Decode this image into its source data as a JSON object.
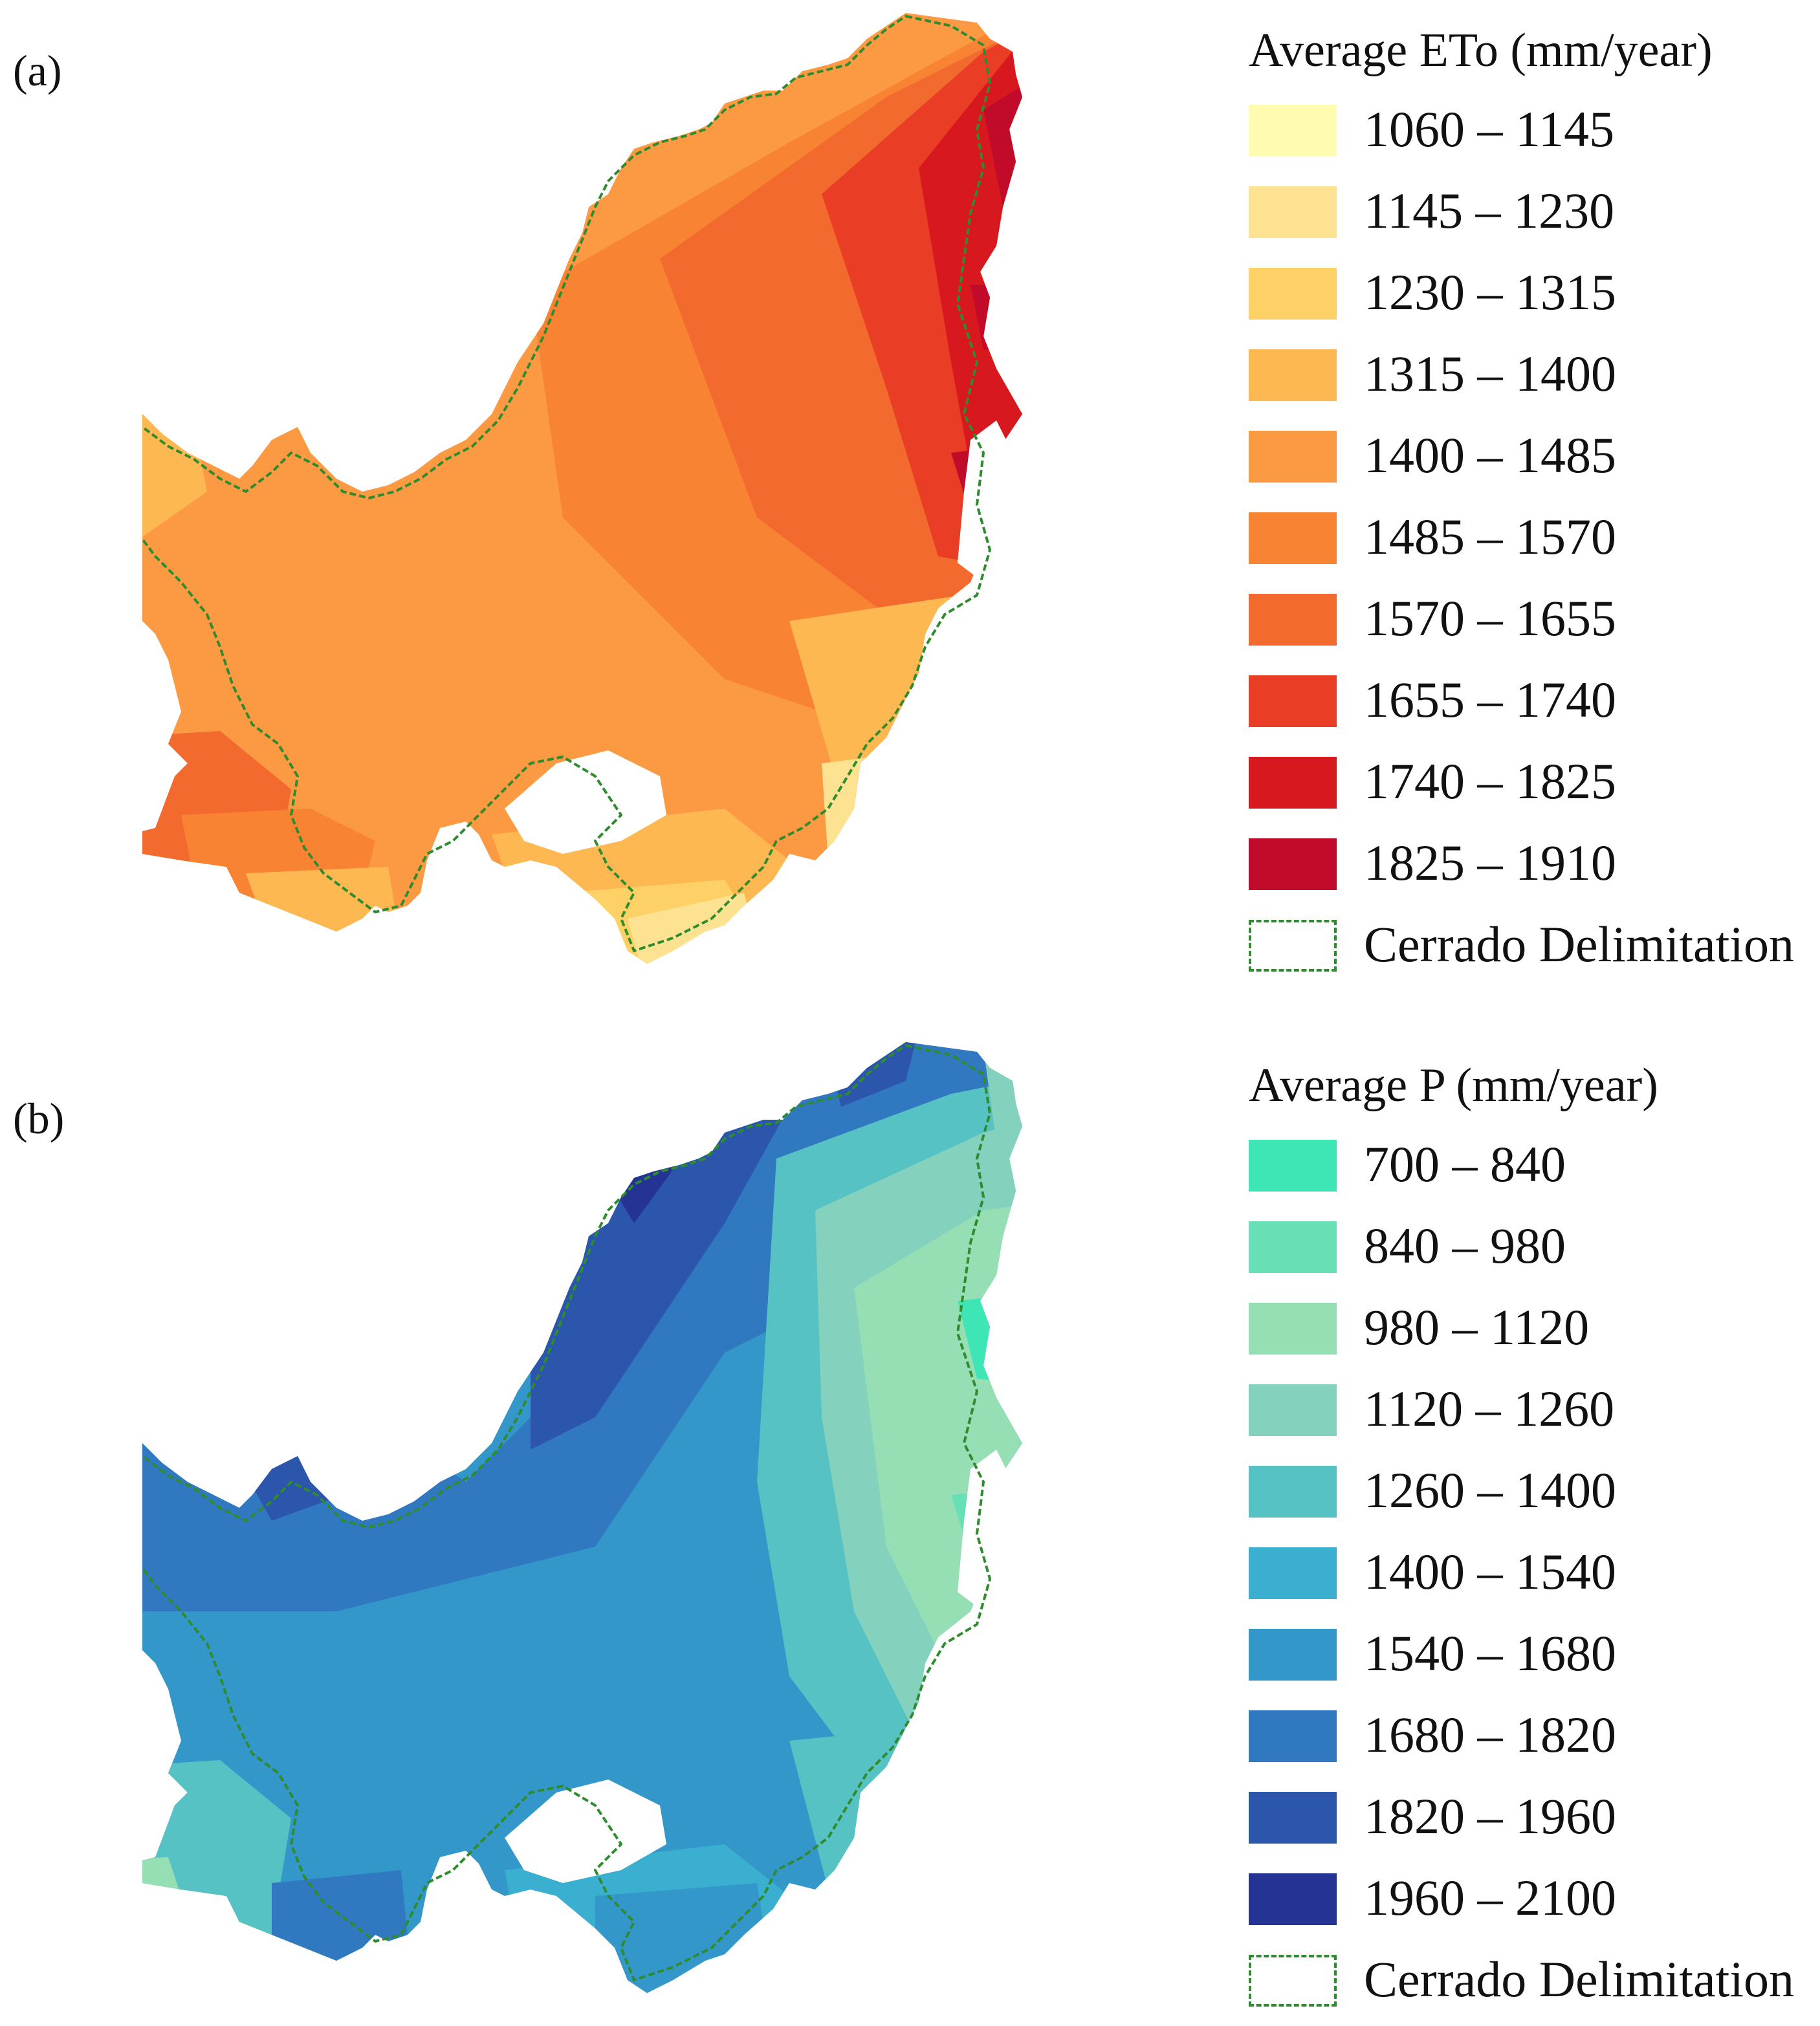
{
  "panels": {
    "a": {
      "label": "(a)",
      "legend": {
        "title": "Average ETo (mm/year)",
        "classes": [
          {
            "label": "1060 – 1145",
            "color": "#fffbb0"
          },
          {
            "label": "1145 – 1230",
            "color": "#fde391"
          },
          {
            "label": "1230 – 1315",
            "color": "#fdd165"
          },
          {
            "label": "1315 – 1400",
            "color": "#fdb852"
          },
          {
            "label": "1400 – 1485",
            "color": "#fc9a44"
          },
          {
            "label": "1485 – 1570",
            "color": "#f88433"
          },
          {
            "label": "1570 – 1655",
            "color": "#f36a2f"
          },
          {
            "label": "1655 – 1740",
            "color": "#e93d25"
          },
          {
            "label": "1740 – 1825",
            "color": "#d7191f"
          },
          {
            "label": "1825 – 1910",
            "color": "#c20b2a"
          }
        ],
        "boundary_label": "Cerrado Delimitation",
        "boundary_color": "#2e8b2e"
      }
    },
    "b": {
      "label": "(b)",
      "legend": {
        "title": "Average P (mm/year)",
        "classes": [
          {
            "label": "700 – 840",
            "color": "#3de6b4"
          },
          {
            "label": "840 – 980",
            "color": "#66e0b4"
          },
          {
            "label": "980 – 1120",
            "color": "#96deb4"
          },
          {
            "label": "1120 – 1260",
            "color": "#84d2bd"
          },
          {
            "label": "1260 – 1400",
            "color": "#57c2c3"
          },
          {
            "label": "1400 – 1540",
            "color": "#3aafd0"
          },
          {
            "label": "1540 – 1680",
            "color": "#3497c9"
          },
          {
            "label": "1680 – 1820",
            "color": "#3079c0"
          },
          {
            "label": "1820 – 1960",
            "color": "#2c56ac"
          },
          {
            "label": "1960 – 2100",
            "color": "#253494"
          }
        ],
        "boundary_label": "Cerrado Delimitation",
        "boundary_color": "#2e8b2e"
      }
    }
  }
}
